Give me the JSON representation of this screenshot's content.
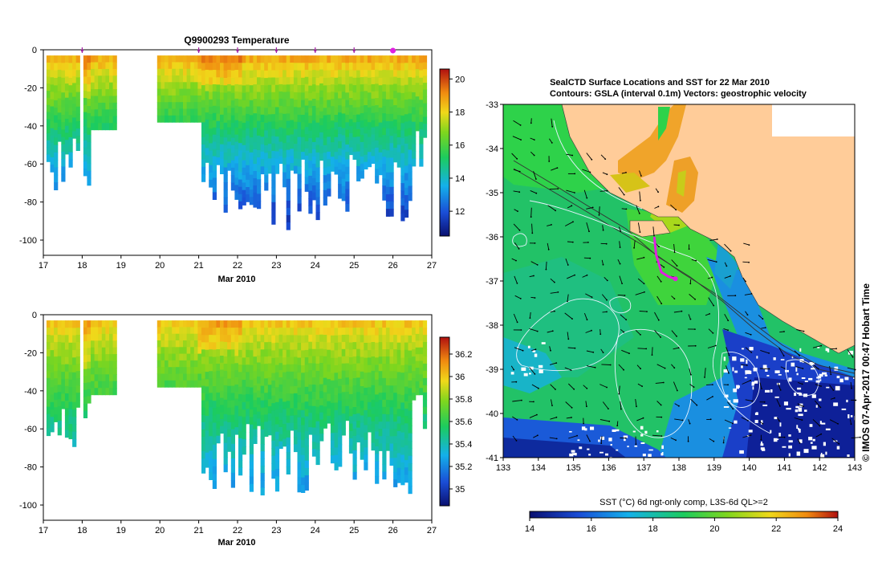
{
  "chart_data": [
    {
      "type": "heatmap",
      "title": "Q9900293  Temperature",
      "xlabel": "Mar 2010",
      "ylabel": "",
      "x_ticks": [
        "17",
        "18",
        "19",
        "20",
        "21",
        "22",
        "23",
        "24",
        "25",
        "26",
        "27"
      ],
      "xlim": [
        17,
        27
      ],
      "y_ticks": [
        "0",
        "-20",
        "-40",
        "-60",
        "-80",
        "-100"
      ],
      "ylim": [
        -108,
        0
      ],
      "colorbar": {
        "ticks": [
          "12",
          "14",
          "16",
          "18",
          "20"
        ],
        "range": [
          10.5,
          20.6
        ]
      },
      "profile_markers": [
        18,
        21,
        22,
        23,
        24,
        25,
        26
      ],
      "highlight_marker": 26,
      "gaps": [
        [
          18.8,
          19.9
        ]
      ]
    },
    {
      "type": "heatmap",
      "title": "",
      "xlabel": "Mar 2010",
      "ylabel": "",
      "x_ticks": [
        "17",
        "18",
        "19",
        "20",
        "21",
        "22",
        "23",
        "24",
        "25",
        "26",
        "27"
      ],
      "xlim": [
        17,
        27
      ],
      "y_ticks": [
        "0",
        "-20",
        "-40",
        "-60",
        "-80",
        "-100"
      ],
      "ylim": [
        -108,
        0
      ],
      "colorbar": {
        "ticks": [
          "35",
          "35.2",
          "35.4",
          "35.6",
          "35.8",
          "36",
          "36.2"
        ],
        "range": [
          34.85,
          36.35
        ]
      },
      "gaps": [
        [
          18.8,
          19.9
        ]
      ]
    },
    {
      "type": "heatmap",
      "title": "SealCTD Surface Locations and SST for 22 Mar 2010",
      "subtitle": "Contours: GSLA (interval 0.1m) Vectors: geostrophic velocity",
      "x_ticks": [
        "133",
        "134",
        "135",
        "136",
        "137",
        "138",
        "139",
        "140",
        "141",
        "142",
        "143"
      ],
      "xlim": [
        133,
        143
      ],
      "y_ticks": [
        "-33",
        "-34",
        "-35",
        "-36",
        "-37",
        "-38",
        "-39",
        "-40",
        "-41"
      ],
      "ylim": [
        -41,
        -33
      ],
      "colorbar_label": "SST (°C) 6d ngt-only comp, L3S-6d QL>=2",
      "colorbar": {
        "ticks": [
          "14",
          "16",
          "18",
          "20",
          "22",
          "24"
        ],
        "range": [
          14,
          24
        ]
      },
      "track_positions": [
        [
          137.3,
          -36.0
        ],
        [
          137.35,
          -36.4
        ],
        [
          137.5,
          -36.8
        ],
        [
          137.7,
          -36.9
        ],
        [
          137.9,
          -36.95
        ]
      ]
    }
  ],
  "credit": "© IMOS 07-Apr-2017 00:47 Hobart Time"
}
